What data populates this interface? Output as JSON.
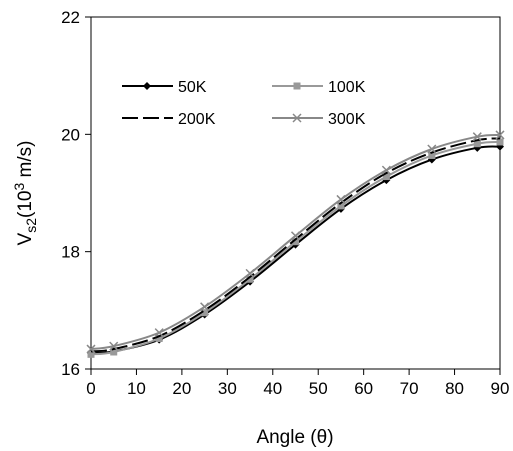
{
  "chart_data": {
    "type": "line",
    "xlabel": "Angle (θ)",
    "ylabel": {
      "base": "V",
      "sub": "s2",
      "mid": "(10",
      "sup": "3",
      "tail": " m/s)"
    },
    "xlim": [
      0,
      90
    ],
    "ylim": [
      16,
      22
    ],
    "xticks": [
      0,
      10,
      20,
      30,
      40,
      50,
      60,
      70,
      80,
      90
    ],
    "yticks": [
      16,
      18,
      20,
      22
    ],
    "grid": false,
    "legend_position": "upper-left inside plot",
    "x": [
      0,
      5,
      15,
      25,
      35,
      45,
      55,
      65,
      75,
      85,
      90
    ],
    "series": [
      {
        "name": "50K",
        "marker": "diamond",
        "color": "#000000",
        "dash": "solid",
        "values": [
          16.27,
          16.3,
          16.5,
          16.93,
          17.49,
          18.12,
          18.73,
          19.22,
          19.57,
          19.77,
          19.79
        ]
      },
      {
        "name": "100K",
        "marker": "square",
        "color": "#999999",
        "dash": "solid",
        "values": [
          16.25,
          16.29,
          16.52,
          16.96,
          17.53,
          18.17,
          18.78,
          19.28,
          19.64,
          19.84,
          19.87
        ]
      },
      {
        "name": "200K",
        "marker": "none",
        "color": "#000000",
        "dash": "dashed",
        "values": [
          16.3,
          16.34,
          16.56,
          17.0,
          17.57,
          18.21,
          18.83,
          19.34,
          19.69,
          19.9,
          19.93
        ]
      },
      {
        "name": "300K",
        "marker": "x",
        "color": "#888888",
        "dash": "solid",
        "values": [
          16.34,
          16.39,
          16.62,
          17.06,
          17.63,
          18.27,
          18.89,
          19.39,
          19.75,
          19.96,
          19.99
        ]
      }
    ]
  }
}
